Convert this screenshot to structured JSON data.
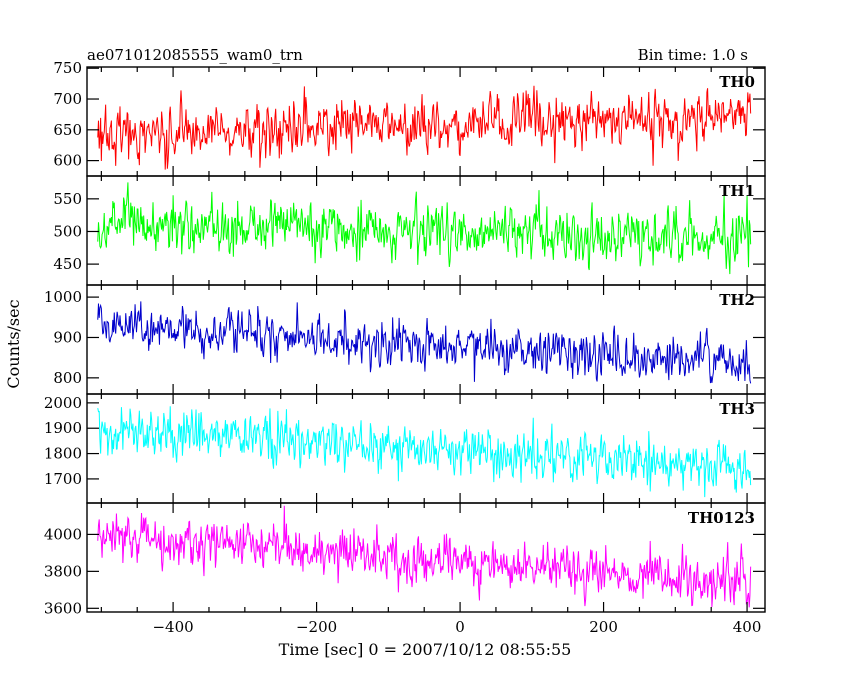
{
  "chart_data": {
    "type": "line",
    "title_left": "ae071012085555_wam0_trn",
    "title_right": "Bin time: 1.0 s",
    "xlabel": "Time [sec] 0 = 2007/10/12 08:55:55",
    "ylabel": "Counts/sec",
    "xlim": [
      -520,
      425
    ],
    "xticks": [
      -400,
      -200,
      0,
      200,
      400
    ],
    "grid": false,
    "bin_time_s": 1.0,
    "x_start": -505,
    "x_end": 405,
    "panels": [
      {
        "name": "TH0",
        "color": "#ff0000",
        "ylim": [
          575,
          752
        ],
        "yticks": [
          600,
          650,
          700,
          750
        ],
        "start": 642,
        "end": 672,
        "noise": 23,
        "spike": 40
      },
      {
        "name": "TH1",
        "color": "#00ff00",
        "ylim": [
          418,
          585
        ],
        "yticks": [
          450,
          500,
          550
        ],
        "start": 510,
        "end": 492,
        "noise": 22,
        "spike": 35
      },
      {
        "name": "TH2",
        "color": "#0000cc",
        "ylim": [
          760,
          1030
        ],
        "yticks": [
          800,
          900,
          1000
        ],
        "start": 935,
        "end": 830,
        "noise": 30,
        "spike": 45
      },
      {
        "name": "TH3",
        "color": "#00ffff",
        "ylim": [
          1605,
          2035
        ],
        "yticks": [
          1700,
          1800,
          1900,
          2000
        ],
        "start": 1895,
        "end": 1740,
        "noise": 50,
        "spike": 70
      },
      {
        "name": "TH0123",
        "color": "#ff00ff",
        "ylim": [
          3580,
          4170
        ],
        "yticks": [
          3600,
          3800,
          4000
        ],
        "start": 3990,
        "end": 3730,
        "noise": 70,
        "spike": 100
      }
    ]
  }
}
